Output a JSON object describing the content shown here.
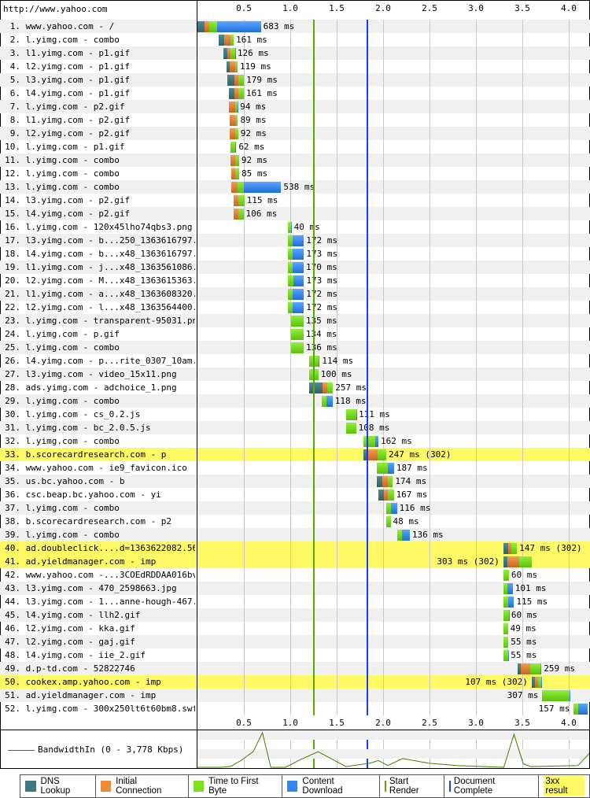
{
  "page_url": "http://www.yahoo.com",
  "colors": {
    "dns": "#3d7880",
    "connect": "#ef8a3a",
    "ttfb": "#7fe01f",
    "download": "#2f88f0",
    "start_render": "#5aa800",
    "doc_complete": "#1a3cff",
    "redirect": "#fff966",
    "bandwidth": "#4a7a00"
  },
  "chart_data": {
    "type": "waterfall",
    "x_unit": "s",
    "xlim": [
      0,
      4.22
    ],
    "ticks": [
      "0.5",
      "1.0",
      "1.5",
      "2.0",
      "2.5",
      "3.0",
      "3.5",
      "4.0"
    ],
    "tick_values": [
      0.5,
      1.0,
      1.5,
      2.0,
      2.5,
      3.0,
      3.5,
      4.0
    ],
    "grid": true,
    "start_render_s": 1.25,
    "doc_complete_s": 1.83,
    "requests": [
      {
        "n": "1.",
        "label": "www.yahoo.com - /",
        "start": 0,
        "dns": 75,
        "connect": 50,
        "ttfb": 90,
        "download": 468,
        "total": 683
      },
      {
        "n": "2.",
        "label": "l.yimg.com - combo",
        "start": 229,
        "dns": 59,
        "connect": 65,
        "ttfb": 37,
        "download": 0,
        "total": 161
      },
      {
        "n": "3.",
        "label": "l1.yimg.com - p1.gif",
        "start": 280,
        "dns": 42,
        "connect": 34,
        "ttfb": 47,
        "download": 3,
        "total": 126
      },
      {
        "n": "4.",
        "label": "l2.yimg.com - p1.gif",
        "start": 313,
        "dns": 34,
        "connect": 59,
        "ttfb": 26,
        "download": 0,
        "total": 119
      },
      {
        "n": "5.",
        "label": "l3.yimg.com - p1.gif",
        "start": 322,
        "dns": 76,
        "connect": 42,
        "ttfb": 61,
        "download": 0,
        "total": 179
      },
      {
        "n": "6.",
        "label": "l4.yimg.com - p1.gif",
        "start": 339,
        "dns": 59,
        "connect": 42,
        "ttfb": 60,
        "download": 0,
        "total": 161
      },
      {
        "n": "7.",
        "label": "l.yimg.com - p2.gif",
        "start": 339,
        "dns": 0,
        "connect": 68,
        "ttfb": 22,
        "download": 4,
        "total": 94
      },
      {
        "n": "8.",
        "label": "l1.yimg.com - p2.gif",
        "start": 347,
        "dns": 0,
        "connect": 59,
        "ttfb": 30,
        "download": 0,
        "total": 89
      },
      {
        "n": "9.",
        "label": "l2.yimg.com - p2.gif",
        "start": 347,
        "dns": 0,
        "connect": 59,
        "ttfb": 33,
        "download": 0,
        "total": 92
      },
      {
        "n": "10.",
        "label": "l.yimg.com - p1.gif",
        "start": 356,
        "dns": 0,
        "connect": 0,
        "ttfb": 51,
        "download": 11,
        "total": 62
      },
      {
        "n": "11.",
        "label": "l.yimg.com - combo",
        "start": 356,
        "dns": 0,
        "connect": 51,
        "ttfb": 41,
        "download": 0,
        "total": 92
      },
      {
        "n": "12.",
        "label": "l.yimg.com - combo",
        "start": 364,
        "dns": 0,
        "connect": 42,
        "ttfb": 43,
        "download": 0,
        "total": 85
      },
      {
        "n": "13.",
        "label": "l.yimg.com - combo",
        "start": 364,
        "dns": 0,
        "connect": 68,
        "ttfb": 68,
        "download": 402,
        "total": 538
      },
      {
        "n": "14.",
        "label": "l3.yimg.com - p2.gif",
        "start": 390,
        "dns": 0,
        "connect": 51,
        "ttfb": 64,
        "download": 0,
        "total": 115
      },
      {
        "n": "15.",
        "label": "l4.yimg.com - p2.gif",
        "start": 390,
        "dns": 0,
        "connect": 51,
        "ttfb": 55,
        "download": 0,
        "total": 106
      },
      {
        "n": "16.",
        "label": "l.yimg.com - 120x45lho74qbs3.png",
        "start": 974,
        "dns": 0,
        "connect": 0,
        "ttfb": 37,
        "download": 3,
        "total": 40
      },
      {
        "n": "17.",
        "label": "l3.yimg.com - b...250_1363616797.jpg",
        "start": 974,
        "dns": 0,
        "connect": 0,
        "ttfb": 51,
        "download": 121,
        "total": 172
      },
      {
        "n": "18.",
        "label": "l4.yimg.com - b...x48_1363616797.jpg",
        "start": 974,
        "dns": 0,
        "connect": 0,
        "ttfb": 51,
        "download": 122,
        "total": 173
      },
      {
        "n": "19.",
        "label": "l1.yimg.com - j...x48_1363561086.jpg",
        "start": 974,
        "dns": 0,
        "connect": 0,
        "ttfb": 51,
        "download": 119,
        "total": 170
      },
      {
        "n": "20.",
        "label": "l2.yimg.com - M...x48_1363615363.jpg",
        "start": 974,
        "dns": 0,
        "connect": 0,
        "ttfb": 59,
        "download": 114,
        "total": 173
      },
      {
        "n": "21.",
        "label": "l1.yimg.com - a...x48_1363608320.jpg",
        "start": 974,
        "dns": 0,
        "connect": 0,
        "ttfb": 51,
        "download": 121,
        "total": 172
      },
      {
        "n": "22.",
        "label": "l2.yimg.com - l...x48_1363564400.jpg",
        "start": 974,
        "dns": 0,
        "connect": 0,
        "ttfb": 51,
        "download": 121,
        "total": 172
      },
      {
        "n": "23.",
        "label": "l.yimg.com - transparent-95031.png",
        "start": 1008,
        "dns": 0,
        "connect": 0,
        "ttfb": 135,
        "download": 0,
        "total": 135
      },
      {
        "n": "24.",
        "label": "l.yimg.com - p.gif",
        "start": 1008,
        "dns": 0,
        "connect": 0,
        "ttfb": 134,
        "download": 0,
        "total": 134
      },
      {
        "n": "25.",
        "label": "l.yimg.com - combo",
        "start": 1008,
        "dns": 0,
        "connect": 0,
        "ttfb": 136,
        "download": 0,
        "total": 136
      },
      {
        "n": "26.",
        "label": "l4.yimg.com - p...rite_0307_10am.png",
        "start": 1203,
        "dns": 0,
        "connect": 0,
        "ttfb": 102,
        "download": 12,
        "total": 114
      },
      {
        "n": "27.",
        "label": "l3.yimg.com - video_15x11.png",
        "start": 1203,
        "dns": 0,
        "connect": 0,
        "ttfb": 100,
        "download": 0,
        "total": 100
      },
      {
        "n": "28.",
        "label": "ads.yimg.com - adchoice_1.png",
        "start": 1203,
        "dns": 144,
        "connect": 51,
        "ttfb": 62,
        "download": 0,
        "total": 257
      },
      {
        "n": "29.",
        "label": "l.yimg.com - combo",
        "start": 1338,
        "dns": 0,
        "connect": 0,
        "ttfb": 51,
        "download": 67,
        "total": 118
      },
      {
        "n": "30.",
        "label": "l.yimg.com - cs_0.2.js",
        "start": 1601,
        "dns": 0,
        "connect": 0,
        "ttfb": 108,
        "download": 3,
        "total": 111
      },
      {
        "n": "31.",
        "label": "l.yimg.com - bc_2.0.5.js",
        "start": 1601,
        "dns": 0,
        "connect": 0,
        "ttfb": 108,
        "download": 0,
        "total": 108
      },
      {
        "n": "32.",
        "label": "l.yimg.com - combo",
        "start": 1787,
        "dns": 0,
        "connect": 0,
        "ttfb": 127,
        "download": 35,
        "total": 162
      },
      {
        "n": "33.",
        "label": "b.scorecardresearch.com - p",
        "start": 1787,
        "dns": 42,
        "connect": 110,
        "ttfb": 95,
        "download": 0,
        "total": 247,
        "status": "302"
      },
      {
        "n": "34.",
        "label": "www.yahoo.com - ie9_favicon.ico",
        "start": 1931,
        "dns": 0,
        "connect": 0,
        "ttfb": 119,
        "download": 68,
        "total": 187
      },
      {
        "n": "35.",
        "label": "us.bc.yahoo.com - b",
        "start": 1931,
        "dns": 59,
        "connect": 59,
        "ttfb": 56,
        "download": 0,
        "total": 174
      },
      {
        "n": "36.",
        "label": "csc.beap.bc.yahoo.com - yi",
        "start": 1948,
        "dns": 59,
        "connect": 42,
        "ttfb": 66,
        "download": 0,
        "total": 167
      },
      {
        "n": "37.",
        "label": "l.yimg.com - combo",
        "start": 2033,
        "dns": 0,
        "connect": 0,
        "ttfb": 51,
        "download": 65,
        "total": 116
      },
      {
        "n": "38.",
        "label": "b.scorecardresearch.com - p2",
        "start": 2033,
        "dns": 0,
        "connect": 0,
        "ttfb": 48,
        "download": 0,
        "total": 48
      },
      {
        "n": "39.",
        "label": "l.yimg.com - combo",
        "start": 2151,
        "dns": 0,
        "connect": 0,
        "ttfb": 51,
        "download": 85,
        "total": 136
      },
      {
        "n": "40.",
        "label": "ad.doubleclick....d=1363622082.56279",
        "start": 3295,
        "dns": 51,
        "connect": 34,
        "ttfb": 62,
        "download": 0,
        "total": 147,
        "status": "302"
      },
      {
        "n": "41.",
        "label": "ad.yieldmanager.com - imp",
        "start": 3295,
        "dns": 42,
        "connect": 127,
        "ttfb": 134,
        "download": 0,
        "total": 303,
        "status": "302"
      },
      {
        "n": "42.",
        "label": "www.yahoo.com -...3COEdRDDAA016bvZx4",
        "start": 3295,
        "dns": 0,
        "connect": 0,
        "ttfb": 60,
        "download": 0,
        "total": 60
      },
      {
        "n": "43.",
        "label": "l3.yimg.com - 470_2598663.jpg",
        "start": 3295,
        "dns": 0,
        "connect": 0,
        "ttfb": 42,
        "download": 59,
        "total": 101
      },
      {
        "n": "44.",
        "label": "l3.yimg.com - 1...anne-hough-467.jpg",
        "start": 3295,
        "dns": 0,
        "connect": 0,
        "ttfb": 51,
        "download": 64,
        "total": 115
      },
      {
        "n": "45.",
        "label": "l4.yimg.com - llh2.gif",
        "start": 3295,
        "dns": 0,
        "connect": 0,
        "ttfb": 57,
        "download": 3,
        "total": 60
      },
      {
        "n": "46.",
        "label": "l2.yimg.com - kka.gif",
        "start": 3295,
        "dns": 0,
        "connect": 0,
        "ttfb": 49,
        "download": 0,
        "total": 49
      },
      {
        "n": "47.",
        "label": "l2.yimg.com - gaj.gif",
        "start": 3295,
        "dns": 0,
        "connect": 0,
        "ttfb": 55,
        "download": 0,
        "total": 55
      },
      {
        "n": "48.",
        "label": "l4.yimg.com - iie_2.gif",
        "start": 3295,
        "dns": 0,
        "connect": 0,
        "ttfb": 51,
        "download": 4,
        "total": 55
      },
      {
        "n": "49.",
        "label": "d.p-td.com - 52822746",
        "start": 3447,
        "dns": 34,
        "connect": 102,
        "ttfb": 110,
        "download": 13,
        "total": 259
      },
      {
        "n": "50.",
        "label": "cookex.amp.yahoo.com - imp",
        "start": 3600,
        "dns": 34,
        "connect": 34,
        "ttfb": 34,
        "download": 5,
        "total": 107,
        "status": "302"
      },
      {
        "n": "51.",
        "label": "ad.yieldmanager.com - imp",
        "start": 3710,
        "dns": 0,
        "connect": 0,
        "ttfb": 296,
        "download": 11,
        "total": 307
      },
      {
        "n": "52.",
        "label": "l.yimg.com - 300x250lt6t60bm8.swf",
        "start": 4049,
        "dns": 0,
        "connect": 0,
        "ttfb": 51,
        "download": 106,
        "total": 157
      }
    ],
    "bandwidth": {
      "label": "BandwidthIn (0 - 3,778 Kbps)",
      "ylim": [
        0,
        3778
      ],
      "t": [
        0,
        0.25,
        0.36,
        0.47,
        0.6,
        0.7,
        0.79,
        0.95,
        1.09,
        1.3,
        1.6,
        1.86,
        1.95,
        2.05,
        2.21,
        2.49,
        2.79,
        3.3,
        3.41,
        3.51,
        3.59,
        3.72,
        4.1,
        4.22
      ],
      "kbps": [
        0,
        0,
        100,
        750,
        1700,
        3778,
        0,
        0,
        750,
        1700,
        75,
        450,
        750,
        190,
        950,
        450,
        190,
        0,
        3600,
        380,
        75,
        110,
        190,
        1500
      ]
    }
  },
  "legend": [
    {
      "key": "dns",
      "label": "DNS Lookup"
    },
    {
      "key": "connect",
      "label": "Initial Connection"
    },
    {
      "key": "ttfb",
      "label": "Time to First Byte"
    },
    {
      "key": "download",
      "label": "Content Download"
    },
    {
      "key": "start_render",
      "label": "Start Render"
    },
    {
      "key": "doc_complete",
      "label": "Document Complete"
    },
    {
      "key": "redirect",
      "label": "3xx result"
    }
  ],
  "ms_suffix": "ms"
}
